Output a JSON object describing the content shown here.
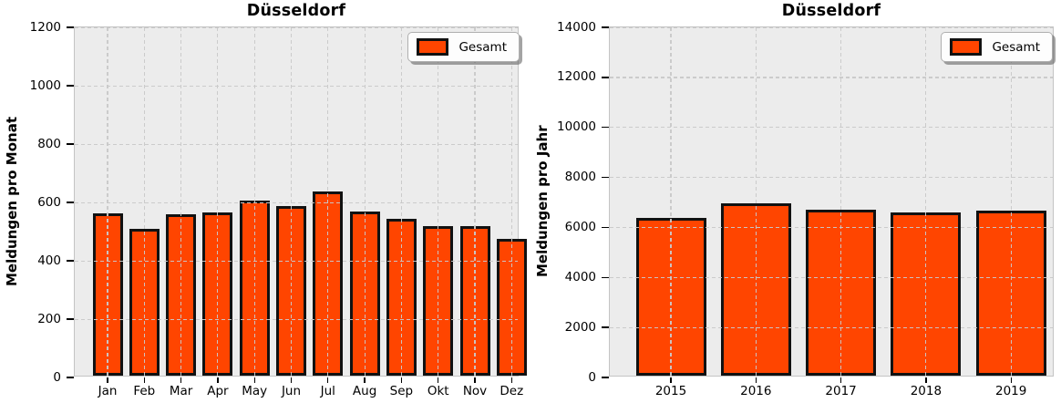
{
  "colors": {
    "bar_fill": "#FF4500",
    "bar_edge": "#111111",
    "plot_bg": "#ECECEC",
    "grid": "#C9C9C9",
    "spine": "#C4C4C4",
    "text": "#000000",
    "legend_bg": "#FDFDFD",
    "legend_border": "#AFAFAF"
  },
  "chart_data": [
    {
      "type": "bar",
      "title": "Düsseldorf",
      "ylabel": "Meldungen pro Monat",
      "xlabel": "",
      "categories": [
        "Jan",
        "Feb",
        "Mar",
        "Apr",
        "May",
        "Jun",
        "Jul",
        "Aug",
        "Sep",
        "Okt",
        "Nov",
        "Dez"
      ],
      "values": [
        556,
        504,
        554,
        558,
        600,
        580,
        630,
        562,
        538,
        512,
        512,
        468
      ],
      "ylim": [
        0,
        1200
      ],
      "yticks": [
        0,
        200,
        400,
        600,
        800,
        1000,
        1200
      ],
      "grid": true,
      "legend": [
        "Gesamt"
      ],
      "legend_position": "upper right"
    },
    {
      "type": "bar",
      "title": "Düsseldorf",
      "ylabel": "Meldungen pro Jahr",
      "xlabel": "",
      "categories": [
        "2015",
        "2016",
        "2017",
        "2018",
        "2019"
      ],
      "values": [
        6300,
        6900,
        6640,
        6540,
        6590
      ],
      "ylim": [
        0,
        14000
      ],
      "yticks": [
        0,
        2000,
        4000,
        6000,
        8000,
        10000,
        12000,
        14000
      ],
      "grid": true,
      "legend": [
        "Gesamt"
      ],
      "legend_position": "upper right"
    }
  ]
}
